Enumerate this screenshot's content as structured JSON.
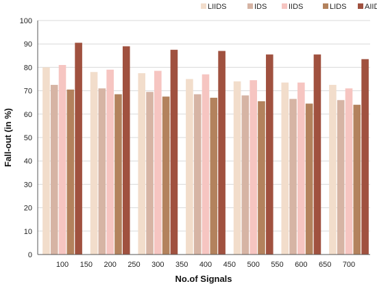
{
  "chart_data": {
    "type": "bar",
    "categories": [
      "100",
      "200",
      "300",
      "400",
      "500",
      "600",
      "700"
    ],
    "xticks": [
      "100",
      "150",
      "200",
      "250",
      "300",
      "350",
      "400",
      "450",
      "500",
      "550",
      "600",
      "650",
      "700"
    ],
    "yticks": [
      "0",
      "10",
      "20",
      "30",
      "40",
      "50",
      "60",
      "70",
      "80",
      "90",
      "100"
    ],
    "series": [
      {
        "name": "LIIDS",
        "color": "#f2ddcb",
        "values": [
          80,
          78,
          77.5,
          75,
          74,
          73.5,
          72.5
        ]
      },
      {
        "name": "IDS",
        "color": "#d6b4a4",
        "values": [
          72.5,
          71,
          69.5,
          68.5,
          68,
          66.5,
          66
        ]
      },
      {
        "name": "IIDS",
        "color": "#f6c5c1",
        "values": [
          81,
          79,
          78.5,
          77,
          74.5,
          73.5,
          71
        ]
      },
      {
        "name": "LIDS",
        "color": "#b3825d",
        "values": [
          70.5,
          68.5,
          67.5,
          67,
          65.5,
          64.5,
          64
        ]
      },
      {
        "name": "AIIDS",
        "color": "#a0513f",
        "values": [
          90.5,
          89,
          87.5,
          87,
          85.5,
          85.5,
          83.5
        ]
      }
    ],
    "xlabel": "No.of Signals",
    "ylabel": "Fall-out (in %)",
    "ylim": [
      0,
      100
    ],
    "grid": true,
    "legend": "top"
  }
}
